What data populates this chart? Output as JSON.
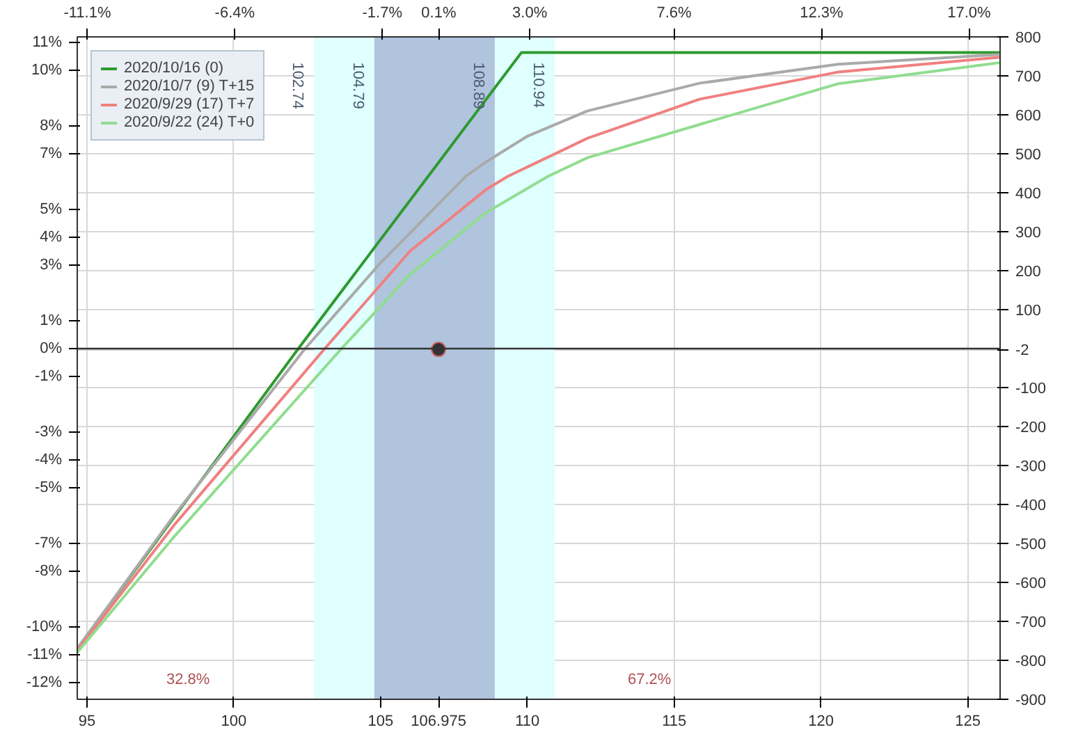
{
  "chart_data": {
    "type": "line",
    "xlim": [
      94.67,
      126.1
    ],
    "xticks": [
      95,
      100,
      105,
      {
        "value": 106.975,
        "label": "106.975"
      },
      110,
      115,
      120,
      125
    ],
    "x2lim": [
      -11.42,
      17.99
    ],
    "x2ticks": [
      {
        "value": -11.1,
        "label": "-11.1%"
      },
      {
        "value": -6.4,
        "label": "-6.4%"
      },
      {
        "value": -1.7,
        "label": "-1.7%"
      },
      {
        "value": 0.1,
        "label": "0.1%"
      },
      {
        "value": 3.0,
        "label": "3.0%"
      },
      {
        "value": 7.6,
        "label": "7.6%"
      },
      {
        "value": 12.3,
        "label": "12.3%"
      },
      {
        "value": 17.0,
        "label": "17.0%"
      }
    ],
    "ylim": [
      -900,
      800
    ],
    "yticks": [
      800,
      700,
      600,
      500,
      400,
      300,
      200,
      100,
      -2,
      -100,
      -200,
      -300,
      -400,
      -500,
      -600,
      -700,
      -800,
      -900
    ],
    "y2lim": [
      -12.6,
      11.2
    ],
    "y2ticks": [
      {
        "value": 11,
        "label": "11%"
      },
      {
        "value": 10,
        "label": "10%"
      },
      {
        "value": 8,
        "label": "8%"
      },
      {
        "value": 7,
        "label": "7%"
      },
      {
        "value": 5,
        "label": "5%"
      },
      {
        "value": 4,
        "label": "4%"
      },
      {
        "value": 3,
        "label": "3%"
      },
      {
        "value": 1,
        "label": "1%"
      },
      {
        "value": 0,
        "label": "0%"
      },
      {
        "value": -1,
        "label": "-1%"
      },
      {
        "value": -3,
        "label": "-3%"
      },
      {
        "value": -4,
        "label": "-4%"
      },
      {
        "value": -5,
        "label": "-5%"
      },
      {
        "value": -7,
        "label": "-7%"
      },
      {
        "value": -8,
        "label": "-8%"
      },
      {
        "value": -10,
        "label": "-10%"
      },
      {
        "value": -11,
        "label": "-11%"
      },
      {
        "value": -12,
        "label": "-12%"
      }
    ],
    "grid": true,
    "legend": "top left",
    "marker": "none",
    "line_style": "solid",
    "bands": [
      {
        "axis": "x",
        "from": 102.74,
        "to": 110.94,
        "color": "#e0ffff"
      },
      {
        "axis": "x",
        "from": 104.79,
        "to": 108.89,
        "color": "#b0c4de"
      }
    ],
    "ref_lines": [
      {
        "axis": "y",
        "value": 0,
        "color": "#333333"
      }
    ],
    "series": [
      {
        "name": "2020/10/16 (0)",
        "color": "#2e9a2e",
        "x": [
          94.67,
          102.2,
          109.8,
          126.1
        ],
        "values": [
          -770,
          0,
          760,
          760
        ]
      },
      {
        "name": "2020/10/7 (9) T+15",
        "color": "#aaaaaa",
        "x": [
          94.67,
          98,
          102.43,
          105,
          107.9,
          108.57,
          110,
          112.05,
          115.86,
          120.6,
          126.1
        ],
        "values": [
          -770,
          -425,
          0,
          220,
          442,
          478,
          545,
          610,
          681,
          730,
          755
        ]
      },
      {
        "name": "2020/9/29 (17) T+7",
        "color": "#f08080",
        "x": [
          94.67,
          98,
          103.1,
          106,
          108.57,
          109.33,
          112.05,
          115.86,
          120.6,
          126.1
        ],
        "values": [
          -775,
          -450,
          0,
          250,
          407,
          442,
          540,
          640,
          710,
          748
        ]
      },
      {
        "name": "2020/9/22 (24) T+0",
        "color": "#90dd90",
        "x": [
          94.67,
          98,
          103.67,
          106,
          108.57,
          110.7,
          112.05,
          115.86,
          120.6,
          126.1
        ],
        "values": [
          -780,
          -480,
          0,
          190,
          348,
          442,
          490,
          575,
          680,
          734
        ]
      },
      {
        "type": "scatter",
        "marker": "circle",
        "color": "#333333",
        "x": [
          106.975
        ],
        "values": [
          -2
        ]
      }
    ],
    "annotations": [
      {
        "text": "102.74",
        "x": 102.74,
        "y": 735
      },
      {
        "text": "104.79",
        "x": 104.79,
        "y": 735
      },
      {
        "text": "108.89",
        "x": 108.89,
        "y": 735
      },
      {
        "text": "110.94",
        "x": 110.94,
        "y": 735
      },
      "32.8%",
      "67.2%"
    ]
  }
}
